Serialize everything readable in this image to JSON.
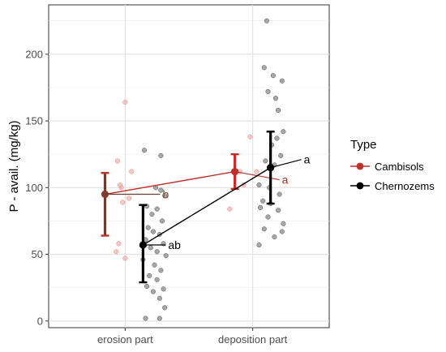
{
  "chart_data": {
    "type": "scatter",
    "categories": [
      "erosion part",
      "deposition part"
    ],
    "xlabel": "",
    "ylabel": "P - avail. (mg/kg)",
    "ylim": [
      -5,
      237
    ],
    "yticks": [
      0,
      50,
      100,
      150,
      200
    ],
    "grid": true,
    "legend": {
      "title": "Type",
      "position": "right",
      "entries": [
        "Cambisols",
        "Chernozems"
      ]
    },
    "series": [
      {
        "name": "Cambisols",
        "color": "#c0302b",
        "means": [
          95,
          112
        ],
        "ci_low": [
          64,
          99
        ],
        "ci_high": [
          111,
          125
        ],
        "letters": [
          "b",
          "a"
        ],
        "points": [
          [
            0.94,
            120
          ],
          [
            1.0,
            164
          ],
          [
            0.97,
            100
          ],
          [
            1.05,
            112
          ],
          [
            0.95,
            58
          ],
          [
            0.93,
            52
          ],
          [
            1.0,
            47
          ],
          [
            0.98,
            89
          ],
          [
            1.03,
            92
          ],
          [
            0.96,
            102
          ],
          [
            1.82,
            84
          ],
          [
            1.93,
            102
          ],
          [
            1.98,
            138
          ],
          [
            2.03,
            112
          ],
          [
            1.9,
            112
          ]
        ]
      },
      {
        "name": "Chernozems",
        "color": "#000000",
        "means": [
          57,
          115
        ],
        "ci_low": [
          29,
          88
        ],
        "ci_high": [
          87,
          142
        ],
        "letters": [
          "ab",
          "a"
        ],
        "points": [
          [
            1.15,
            128
          ],
          [
            1.28,
            124
          ],
          [
            1.24,
            100
          ],
          [
            1.28,
            98
          ],
          [
            1.31,
            94
          ],
          [
            1.17,
            86
          ],
          [
            1.25,
            84
          ],
          [
            1.21,
            80
          ],
          [
            1.29,
            75
          ],
          [
            1.18,
            70
          ],
          [
            1.22,
            67
          ],
          [
            1.27,
            65
          ],
          [
            1.16,
            61
          ],
          [
            1.3,
            58
          ],
          [
            1.2,
            55
          ],
          [
            1.25,
            52
          ],
          [
            1.32,
            49
          ],
          [
            1.14,
            46
          ],
          [
            1.23,
            42
          ],
          [
            1.28,
            38
          ],
          [
            1.19,
            34
          ],
          [
            1.25,
            31
          ],
          [
            1.17,
            26
          ],
          [
            1.3,
            24
          ],
          [
            1.22,
            22
          ],
          [
            1.27,
            17
          ],
          [
            1.31,
            10
          ],
          [
            1.16,
            2
          ],
          [
            1.27,
            2
          ],
          [
            2.11,
            225
          ],
          [
            2.09,
            190
          ],
          [
            2.16,
            184
          ],
          [
            2.23,
            180
          ],
          [
            2.12,
            172
          ],
          [
            2.18,
            167
          ],
          [
            2.2,
            158
          ],
          [
            2.24,
            142
          ],
          [
            2.19,
            137
          ],
          [
            2.15,
            132
          ],
          [
            2.22,
            124
          ],
          [
            2.1,
            120
          ],
          [
            2.17,
            117
          ],
          [
            2.05,
            102
          ],
          [
            2.13,
            100
          ],
          [
            2.21,
            95
          ],
          [
            2.08,
            90
          ],
          [
            2.14,
            88
          ],
          [
            2.06,
            85
          ],
          [
            2.2,
            83
          ],
          [
            2.12,
            78
          ],
          [
            2.24,
            73
          ],
          [
            2.09,
            69
          ],
          [
            2.23,
            67
          ],
          [
            2.17,
            63
          ],
          [
            2.05,
            57
          ]
        ]
      }
    ]
  }
}
